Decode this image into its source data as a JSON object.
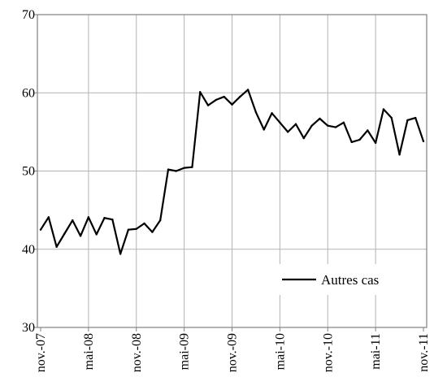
{
  "chart_data": {
    "type": "line",
    "title": "",
    "xlabel": "",
    "ylabel": "",
    "ylim": [
      30,
      70
    ],
    "yticks": [
      30,
      40,
      50,
      60,
      70
    ],
    "grid": "vertical and horizontal",
    "legend_position": "bottom-right",
    "x_tick_labels": [
      "nov.-07",
      "mai-08",
      "nov.-08",
      "mai-09",
      "nov.-09",
      "mai-10",
      "nov.-10",
      "mai-11",
      "nov.-11"
    ],
    "x_tick_indices": [
      0,
      6,
      12,
      18,
      24,
      30,
      36,
      42,
      48
    ],
    "series": [
      {
        "name": "Autres cas",
        "color": "#000000",
        "values": [
          42.5,
          44.1,
          40.3,
          42.0,
          43.7,
          41.7,
          44.1,
          41.9,
          44.0,
          43.8,
          39.4,
          42.5,
          42.6,
          43.3,
          42.2,
          43.7,
          50.2,
          50.0,
          50.4,
          50.5,
          60.1,
          58.4,
          59.1,
          59.5,
          58.5,
          59.5,
          60.4,
          57.5,
          55.3,
          57.4,
          56.2,
          55.0,
          56.0,
          54.2,
          55.8,
          56.7,
          55.8,
          55.6,
          56.2,
          53.7,
          54.0,
          55.2,
          53.6,
          57.9,
          56.8,
          52.1,
          56.5,
          56.8,
          53.8
        ]
      }
    ]
  }
}
